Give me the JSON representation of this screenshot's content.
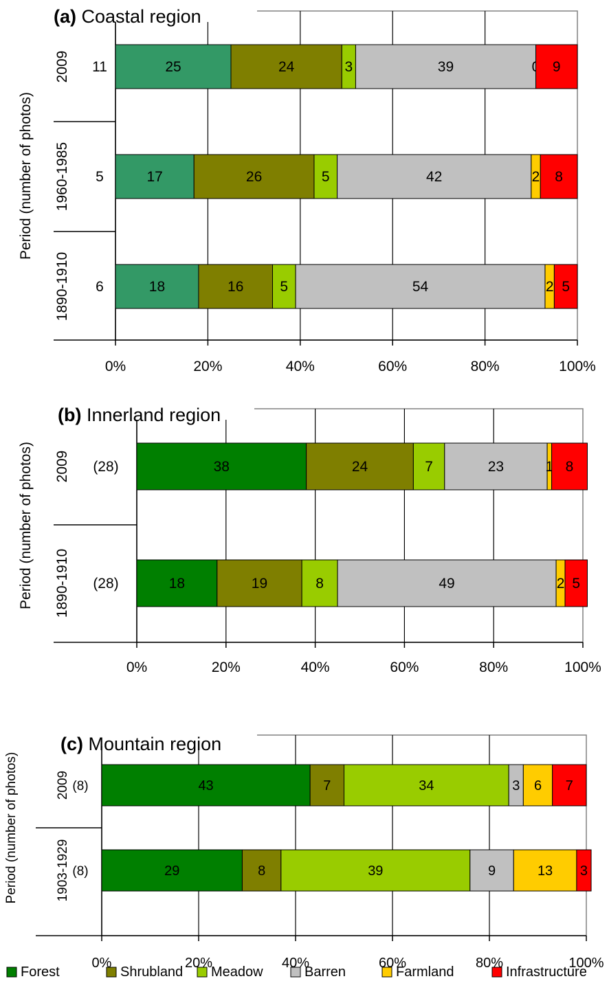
{
  "legend": [
    {
      "name": "Forest",
      "color": "#007f00"
    },
    {
      "name": "Shrubland",
      "color": "#7f7f00"
    },
    {
      "name": "Meadow",
      "color": "#99cc00"
    },
    {
      "name": "Barren",
      "color": "#c0c0c0"
    },
    {
      "name": "Farmland",
      "color": "#ffcc00"
    },
    {
      "name": "Infrastructure",
      "color": "#ff0000"
    }
  ],
  "chart_data": [
    {
      "type": "bar",
      "stacked": "percent",
      "orientation": "horizontal",
      "title_prefix": "(a)",
      "title": "Coastal region",
      "ylabel": "Period (number of photos)",
      "xticks": [
        "0%",
        "20%",
        "40%",
        "60%",
        "80%",
        "100%"
      ],
      "grid": true,
      "categories": [
        "2009",
        "1960-1985",
        "1890-1910"
      ],
      "counts": [
        "11",
        "5",
        "6"
      ],
      "series": [
        {
          "name": "Forest",
          "color": "#339966",
          "values": [
            25,
            17,
            18
          ]
        },
        {
          "name": "Shrubland",
          "color": "#7f7f00",
          "values": [
            24,
            26,
            16
          ]
        },
        {
          "name": "Meadow",
          "color": "#99cc00",
          "values": [
            3,
            5,
            5
          ]
        },
        {
          "name": "Barren",
          "color": "#c0c0c0",
          "values": [
            39,
            42,
            54
          ]
        },
        {
          "name": "Farmland",
          "color": "#ffcc00",
          "values": [
            0,
            2,
            2
          ]
        },
        {
          "name": "Infrastructure",
          "color": "#ff0000",
          "values": [
            9,
            8,
            5
          ]
        }
      ]
    },
    {
      "type": "bar",
      "stacked": "percent",
      "orientation": "horizontal",
      "title_prefix": "(b)",
      "title": "Innerland region",
      "ylabel": "Period (number of photos)",
      "xticks": [
        "0%",
        "20%",
        "40%",
        "60%",
        "80%",
        "100%"
      ],
      "grid": true,
      "categories": [
        "2009",
        "1890-1910"
      ],
      "counts": [
        "(28)",
        "(28)"
      ],
      "series": [
        {
          "name": "Forest",
          "color": "#007f00",
          "values": [
            38,
            18
          ]
        },
        {
          "name": "Shrubland",
          "color": "#7f7f00",
          "values": [
            24,
            19
          ]
        },
        {
          "name": "Meadow",
          "color": "#99cc00",
          "values": [
            7,
            8
          ]
        },
        {
          "name": "Barren",
          "color": "#c0c0c0",
          "values": [
            23,
            49
          ]
        },
        {
          "name": "Farmland",
          "color": "#ffcc00",
          "values": [
            1,
            2
          ]
        },
        {
          "name": "Infrastructure",
          "color": "#ff0000",
          "values": [
            8,
            5
          ]
        }
      ]
    },
    {
      "type": "bar",
      "stacked": "percent",
      "orientation": "horizontal",
      "title_prefix": "(c)",
      "title": "Mountain region",
      "ylabel": "Period (number of photos)",
      "xticks": [
        "0%",
        "20%",
        "40%",
        "60%",
        "80%",
        "100%"
      ],
      "grid": true,
      "categories": [
        "2009",
        "1903-1929"
      ],
      "counts": [
        "(8)",
        "(8)"
      ],
      "series": [
        {
          "name": "Forest",
          "color": "#007f00",
          "values": [
            43,
            29
          ]
        },
        {
          "name": "Shrubland",
          "color": "#7f7f00",
          "values": [
            7,
            8
          ]
        },
        {
          "name": "Meadow",
          "color": "#99cc00",
          "values": [
            34,
            39
          ]
        },
        {
          "name": "Barren",
          "color": "#c0c0c0",
          "values": [
            3,
            9
          ]
        },
        {
          "name": "Farmland",
          "color": "#ffcc00",
          "values": [
            6,
            13
          ]
        },
        {
          "name": "Infrastructure",
          "color": "#ff0000",
          "values": [
            7,
            3
          ]
        }
      ]
    }
  ]
}
